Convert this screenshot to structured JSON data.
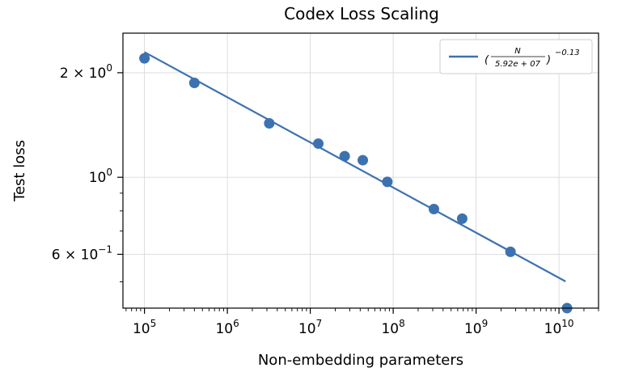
{
  "chart_data": {
    "type": "scatter",
    "title": "Codex Loss Scaling",
    "xlabel": "Non-embedding parameters",
    "ylabel": "Test loss",
    "x_scale": "log",
    "y_scale": "log",
    "xlim": [
      55000,
      30000000000
    ],
    "ylim": [
      0.42,
      2.6
    ],
    "grid": true,
    "x_ticks": [
      {
        "base": "10",
        "exp": "5",
        "value": 100000
      },
      {
        "base": "10",
        "exp": "6",
        "value": 1000000
      },
      {
        "base": "10",
        "exp": "7",
        "value": 10000000
      },
      {
        "base": "10",
        "exp": "8",
        "value": 100000000
      },
      {
        "base": "10",
        "exp": "9",
        "value": 1000000000
      },
      {
        "base": "10",
        "exp": "10",
        "value": 10000000000
      }
    ],
    "y_ticks": [
      {
        "prefix": "2 × 10",
        "exp": "0",
        "value": 2.0
      },
      {
        "prefix": "10",
        "exp": "0",
        "value": 1.0
      },
      {
        "prefix": "6 × 10",
        "exp": "−1",
        "value": 0.6
      }
    ],
    "series": [
      {
        "type": "scatter",
        "color": "#3d72b0",
        "points": [
          {
            "x": 100000,
            "y": 2.2
          },
          {
            "x": 400000,
            "y": 1.87
          },
          {
            "x": 3200000,
            "y": 1.43
          },
          {
            "x": 12500000,
            "y": 1.25
          },
          {
            "x": 26000000,
            "y": 1.15
          },
          {
            "x": 43000000,
            "y": 1.12
          },
          {
            "x": 85000000,
            "y": 0.97
          },
          {
            "x": 310000000,
            "y": 0.81
          },
          {
            "x": 680000000,
            "y": 0.76
          },
          {
            "x": 2600000000,
            "y": 0.61
          },
          {
            "x": 12500000000,
            "y": 0.42
          }
        ]
      },
      {
        "type": "line",
        "color": "#3d72b0",
        "label_numerator": "N",
        "label_denominator": "5.92e + 07",
        "label_exponent": "−0.13",
        "fit_scale": 59200000,
        "fit_exponent": -0.13,
        "x_range": [
          100000,
          12000000000
        ]
      }
    ],
    "legend_position": "top-right"
  }
}
